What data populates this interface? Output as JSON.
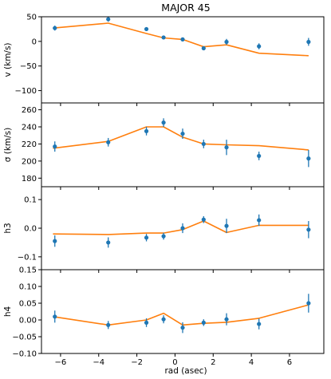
{
  "title": "MAJOR 45",
  "xlabel": "rad (asec)",
  "colors": {
    "data": "#1f77b4",
    "model": "#ff7f0e",
    "frame": "#000000"
  },
  "x_axis": {
    "xlim": [
      -7.0,
      7.8
    ],
    "ticks": [
      -6,
      -4,
      -2,
      0,
      2,
      4,
      6
    ],
    "tick_labels": [
      "−6",
      "−4",
      "−2",
      "0",
      "2",
      "4",
      "6"
    ]
  },
  "chart_data": [
    {
      "type": "line",
      "id": "v",
      "ylabel": "v (km/s)",
      "ylim": [
        -125,
        50
      ],
      "yticks": [
        -100,
        -50,
        0,
        50
      ],
      "ytick_labels": [
        "−100",
        "−50",
        "0",
        "50"
      ],
      "model": {
        "x": [
          -6.4,
          -3.5,
          -1.5,
          -0.6,
          0.4,
          1.5,
          2.7,
          4.4,
          7.0
        ],
        "y": [
          27,
          37,
          16,
          7,
          4,
          -11,
          -7,
          -24,
          -29
        ]
      },
      "points": {
        "x": [
          -6.3,
          -3.5,
          -1.5,
          -0.6,
          0.4,
          1.5,
          2.7,
          4.4,
          7.0
        ],
        "y": [
          27,
          45,
          25,
          8,
          4,
          -14,
          -1,
          -10,
          -1
        ],
        "err": [
          5,
          5,
          4,
          3,
          4,
          4,
          6,
          6,
          8
        ]
      }
    },
    {
      "type": "line",
      "id": "sigma",
      "ylabel": "σ (km/s)",
      "ylim": [
        170,
        268
      ],
      "yticks": [
        180,
        200,
        220,
        240,
        260
      ],
      "ytick_labels": [
        "180",
        "200",
        "220",
        "240",
        "260"
      ],
      "model": {
        "x": [
          -6.4,
          -3.5,
          -1.5,
          -0.6,
          0.4,
          1.5,
          2.7,
          4.4,
          7.0
        ],
        "y": [
          215,
          223,
          240,
          240,
          228,
          220,
          219,
          218,
          213
        ]
      },
      "points": {
        "x": [
          -6.3,
          -3.5,
          -1.5,
          -0.6,
          0.4,
          1.5,
          2.7,
          4.4,
          7.0
        ],
        "y": [
          217,
          222,
          235,
          245,
          232,
          220,
          216,
          206,
          203
        ],
        "err": [
          6,
          5,
          5,
          5,
          6,
          5,
          9,
          5,
          10
        ]
      }
    },
    {
      "type": "line",
      "id": "h3",
      "ylabel": "h3",
      "ylim": [
        -0.145,
        0.145
      ],
      "yticks": [
        -0.1,
        0.0,
        0.1
      ],
      "ytick_labels": [
        "−0.1",
        "0.0",
        "0.1"
      ],
      "model": {
        "x": [
          -6.4,
          -3.5,
          -1.5,
          -0.6,
          0.4,
          1.5,
          2.7,
          4.4,
          7.0
        ],
        "y": [
          -0.02,
          -0.022,
          -0.017,
          -0.017,
          -0.005,
          0.025,
          -0.015,
          0.01,
          0.01
        ]
      },
      "points": {
        "x": [
          -6.3,
          -3.5,
          -1.5,
          -0.6,
          0.4,
          1.5,
          2.7,
          4.4,
          7.0
        ],
        "y": [
          -0.045,
          -0.05,
          -0.033,
          -0.028,
          0.0,
          0.03,
          0.008,
          0.028,
          -0.005
        ],
        "err": [
          0.02,
          0.018,
          0.013,
          0.012,
          0.017,
          0.012,
          0.025,
          0.02,
          0.03
        ]
      }
    },
    {
      "type": "line",
      "id": "h4",
      "ylabel": "h4",
      "ylim": [
        -0.1,
        0.15
      ],
      "yticks": [
        -0.1,
        -0.05,
        0.0,
        0.05,
        0.1,
        0.15
      ],
      "ytick_labels": [
        "−0.10",
        "−0.05",
        "0.00",
        "0.05",
        "0.10",
        "0.15"
      ],
      "model": {
        "x": [
          -6.4,
          -3.5,
          -1.5,
          -0.6,
          0.4,
          1.5,
          2.7,
          4.4,
          7.0
        ],
        "y": [
          0.01,
          -0.015,
          0.0,
          0.02,
          -0.015,
          -0.01,
          -0.007,
          0.005,
          0.045
        ]
      },
      "points": {
        "x": [
          -6.3,
          -3.5,
          -1.5,
          -0.6,
          0.4,
          1.5,
          2.7,
          4.4,
          7.0
        ],
        "y": [
          0.01,
          -0.015,
          -0.008,
          0.002,
          -0.023,
          -0.008,
          0.002,
          -0.012,
          0.05
        ],
        "err": [
          0.018,
          0.012,
          0.013,
          0.012,
          0.016,
          0.01,
          0.018,
          0.016,
          0.028
        ]
      }
    }
  ]
}
